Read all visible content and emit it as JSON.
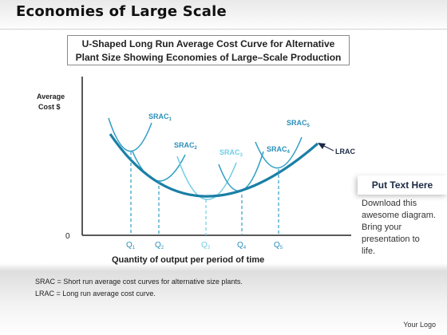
{
  "slide": {
    "title": "Economies of Large Scale",
    "subtitle_line1": "U-Shaped Long Run Average Cost Curve for Alternative",
    "subtitle_line2": "Plant Size Showing Economies of Large–Scale Production"
  },
  "diagram": {
    "y_label_line1": "Average",
    "y_label_line2": "Cost $",
    "origin_label": "0",
    "x_label": "Quantity of output per period of time",
    "curve_labels": {
      "srac1": "SRAC",
      "srac1_sub": "1",
      "srac2": "SRAC",
      "srac2_sub": "2",
      "srac3": "SRAC",
      "srac3_sub": "3",
      "srac4": "SRAC",
      "srac4_sub": "4",
      "srac5": "SRAC",
      "srac5_sub": "5",
      "lrac": "LRAC"
    },
    "quantity_labels": [
      {
        "q": "Q",
        "sub": "1"
      },
      {
        "q": "Q",
        "sub": "2"
      },
      {
        "q": "Q",
        "sub": "3"
      },
      {
        "q": "Q",
        "sub": "4"
      },
      {
        "q": "Q",
        "sub": "5"
      }
    ]
  },
  "side_panel": {
    "heading": "Put Text Here",
    "body_lines": [
      "Download this",
      "awesome diagram.",
      "Bring your",
      "presentation to",
      "life."
    ]
  },
  "footnotes": {
    "srac": "SRAC = Short run average cost curves for alternative size plants.",
    "lrac": "LRAC = Long run average cost curve."
  },
  "logo": "Your Logo",
  "colors": {
    "lrac": "#1a7fa6",
    "srac_dark": "#2f9ec5",
    "srac_light": "#6fcde6",
    "label_blue": "#2a8fb8",
    "axis": "#222222"
  }
}
